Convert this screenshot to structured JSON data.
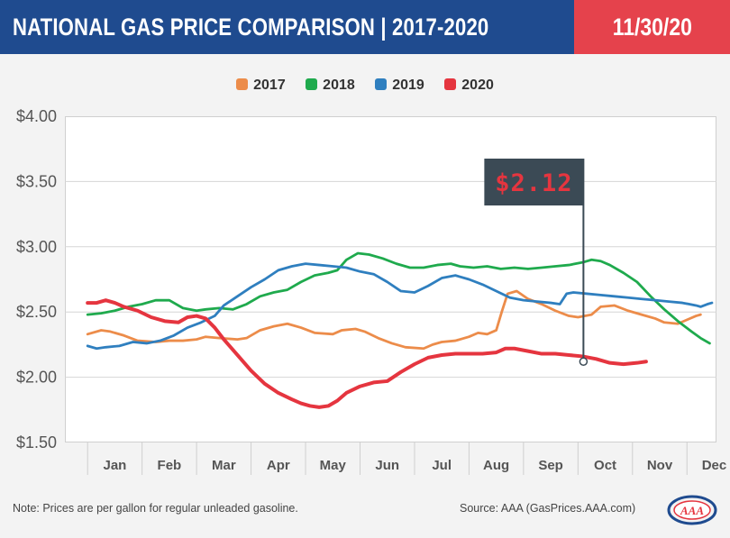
{
  "header": {
    "title": "NATIONAL GAS PRICE COMPARISON | 2017-2020",
    "date": "11/30/20"
  },
  "colors": {
    "header_bg": "#1f4b8f",
    "date_bg": "#e5424c",
    "2017": "#ec8c4a",
    "2018": "#1faa4d",
    "2019": "#2f7fbf",
    "2020": "#e5353f",
    "marker_bg": "#3b4a55",
    "marker_text": "#e5353f"
  },
  "footer": {
    "note": "Note: Prices are per gallon for regular unleaded gasoline.",
    "source": "Source: AAA (GasPrices.AAA.com)",
    "logo_text": "AAA"
  },
  "chart_data": {
    "type": "line",
    "categories": [
      "Jan",
      "Feb",
      "Mar",
      "Apr",
      "May",
      "Jun",
      "Jul",
      "Aug",
      "Sep",
      "Oct",
      "Nov",
      "Dec"
    ],
    "x_unit": "month (fractional)",
    "ylim": [
      1.5,
      4.0
    ],
    "yticks": [
      {
        "value": 4.0,
        "label": "$4.00"
      },
      {
        "value": 3.5,
        "label": "$3.50"
      },
      {
        "value": 3.0,
        "label": "$3.00"
      },
      {
        "value": 2.5,
        "label": "$2.50"
      },
      {
        "value": 2.0,
        "label": "$2.00"
      },
      {
        "value": 1.5,
        "label": "$1.50"
      }
    ],
    "grid": "horizontal",
    "legend_position": "top-center",
    "annotation": {
      "label": "$2.12",
      "x": 11.42,
      "y": 2.12,
      "series": "2020"
    },
    "series": [
      {
        "name": "2017",
        "color": "#ec8c4a",
        "points": [
          [
            0.5,
            2.33
          ],
          [
            0.8,
            2.36
          ],
          [
            1.0,
            2.35
          ],
          [
            1.3,
            2.32
          ],
          [
            1.6,
            2.28
          ],
          [
            2.0,
            2.27
          ],
          [
            2.3,
            2.28
          ],
          [
            2.6,
            2.28
          ],
          [
            2.9,
            2.29
          ],
          [
            3.1,
            2.31
          ],
          [
            3.4,
            2.3
          ],
          [
            3.8,
            2.29
          ],
          [
            4.0,
            2.3
          ],
          [
            4.3,
            2.36
          ],
          [
            4.6,
            2.39
          ],
          [
            4.9,
            2.41
          ],
          [
            5.2,
            2.38
          ],
          [
            5.5,
            2.34
          ],
          [
            5.9,
            2.33
          ],
          [
            6.1,
            2.36
          ],
          [
            6.4,
            2.37
          ],
          [
            6.6,
            2.35
          ],
          [
            6.9,
            2.3
          ],
          [
            7.2,
            2.26
          ],
          [
            7.5,
            2.23
          ],
          [
            7.9,
            2.22
          ],
          [
            8.1,
            2.25
          ],
          [
            8.3,
            2.27
          ],
          [
            8.6,
            2.28
          ],
          [
            8.9,
            2.31
          ],
          [
            9.1,
            2.34
          ],
          [
            9.3,
            2.33
          ],
          [
            9.5,
            2.36
          ],
          [
            9.62,
            2.5
          ],
          [
            9.75,
            2.64
          ],
          [
            9.95,
            2.66
          ],
          [
            10.2,
            2.6
          ],
          [
            10.5,
            2.56
          ],
          [
            10.8,
            2.51
          ],
          [
            11.1,
            2.47
          ],
          [
            11.3,
            2.46
          ],
          [
            11.6,
            2.48
          ],
          [
            11.8,
            2.54
          ],
          [
            12.1,
            2.55
          ],
          [
            12.4,
            2.51
          ],
          [
            12.7,
            2.48
          ],
          [
            13.0,
            2.45
          ],
          [
            13.2,
            2.42
          ],
          [
            13.5,
            2.41
          ],
          [
            13.7,
            2.44
          ],
          [
            13.9,
            2.47
          ],
          [
            14.0,
            2.48
          ]
        ]
      },
      {
        "name": "2018",
        "color": "#1faa4d",
        "points": [
          [
            0.5,
            2.48
          ],
          [
            0.8,
            2.49
          ],
          [
            1.1,
            2.51
          ],
          [
            1.4,
            2.54
          ],
          [
            1.7,
            2.56
          ],
          [
            2.0,
            2.59
          ],
          [
            2.3,
            2.59
          ],
          [
            2.6,
            2.53
          ],
          [
            2.9,
            2.51
          ],
          [
            3.1,
            2.52
          ],
          [
            3.4,
            2.53
          ],
          [
            3.7,
            2.52
          ],
          [
            4.0,
            2.56
          ],
          [
            4.3,
            2.62
          ],
          [
            4.6,
            2.65
          ],
          [
            4.9,
            2.67
          ],
          [
            5.2,
            2.73
          ],
          [
            5.5,
            2.78
          ],
          [
            5.8,
            2.8
          ],
          [
            6.0,
            2.82
          ],
          [
            6.2,
            2.9
          ],
          [
            6.45,
            2.95
          ],
          [
            6.7,
            2.94
          ],
          [
            7.0,
            2.91
          ],
          [
            7.3,
            2.87
          ],
          [
            7.6,
            2.84
          ],
          [
            7.9,
            2.84
          ],
          [
            8.2,
            2.86
          ],
          [
            8.5,
            2.87
          ],
          [
            8.7,
            2.85
          ],
          [
            9.0,
            2.84
          ],
          [
            9.3,
            2.85
          ],
          [
            9.6,
            2.83
          ],
          [
            9.9,
            2.84
          ],
          [
            10.2,
            2.83
          ],
          [
            10.5,
            2.84
          ],
          [
            10.8,
            2.85
          ],
          [
            11.1,
            2.86
          ],
          [
            11.4,
            2.88
          ],
          [
            11.6,
            2.9
          ],
          [
            11.8,
            2.89
          ],
          [
            12.0,
            2.86
          ],
          [
            12.3,
            2.8
          ],
          [
            12.6,
            2.73
          ],
          [
            12.9,
            2.62
          ],
          [
            13.2,
            2.52
          ],
          [
            13.5,
            2.43
          ],
          [
            13.8,
            2.35
          ],
          [
            14.0,
            2.3
          ],
          [
            14.2,
            2.26
          ]
        ]
      },
      {
        "name": "2019",
        "color": "#2f7fbf",
        "points": [
          [
            0.5,
            2.24
          ],
          [
            0.7,
            2.22
          ],
          [
            0.9,
            2.23
          ],
          [
            1.2,
            2.24
          ],
          [
            1.5,
            2.27
          ],
          [
            1.8,
            2.26
          ],
          [
            2.1,
            2.28
          ],
          [
            2.4,
            2.32
          ],
          [
            2.7,
            2.38
          ],
          [
            3.0,
            2.42
          ],
          [
            3.3,
            2.47
          ],
          [
            3.5,
            2.55
          ],
          [
            3.8,
            2.62
          ],
          [
            4.1,
            2.69
          ],
          [
            4.4,
            2.75
          ],
          [
            4.7,
            2.82
          ],
          [
            5.0,
            2.85
          ],
          [
            5.3,
            2.87
          ],
          [
            5.6,
            2.86
          ],
          [
            5.9,
            2.85
          ],
          [
            6.2,
            2.84
          ],
          [
            6.5,
            2.81
          ],
          [
            6.8,
            2.79
          ],
          [
            7.1,
            2.73
          ],
          [
            7.4,
            2.66
          ],
          [
            7.7,
            2.65
          ],
          [
            8.0,
            2.7
          ],
          [
            8.3,
            2.76
          ],
          [
            8.6,
            2.78
          ],
          [
            8.9,
            2.75
          ],
          [
            9.2,
            2.71
          ],
          [
            9.5,
            2.66
          ],
          [
            9.8,
            2.61
          ],
          [
            10.1,
            2.59
          ],
          [
            10.4,
            2.58
          ],
          [
            10.7,
            2.57
          ],
          [
            10.9,
            2.56
          ],
          [
            11.05,
            2.64
          ],
          [
            11.2,
            2.65
          ],
          [
            11.5,
            2.64
          ],
          [
            11.8,
            2.63
          ],
          [
            12.1,
            2.62
          ],
          [
            12.4,
            2.61
          ],
          [
            12.7,
            2.6
          ],
          [
            13.0,
            2.59
          ],
          [
            13.3,
            2.58
          ],
          [
            13.6,
            2.57
          ],
          [
            13.9,
            2.55
          ],
          [
            14.0,
            2.54
          ],
          [
            14.15,
            2.56
          ],
          [
            14.25,
            2.57
          ]
        ]
      },
      {
        "name": "2020",
        "color": "#e5353f",
        "points": [
          [
            0.5,
            2.57
          ],
          [
            0.7,
            2.57
          ],
          [
            0.9,
            2.59
          ],
          [
            1.1,
            2.57
          ],
          [
            1.3,
            2.54
          ],
          [
            1.6,
            2.51
          ],
          [
            1.9,
            2.46
          ],
          [
            2.2,
            2.43
          ],
          [
            2.5,
            2.42
          ],
          [
            2.7,
            2.46
          ],
          [
            2.9,
            2.47
          ],
          [
            3.1,
            2.45
          ],
          [
            3.3,
            2.38
          ],
          [
            3.5,
            2.29
          ],
          [
            3.8,
            2.17
          ],
          [
            4.1,
            2.05
          ],
          [
            4.4,
            1.95
          ],
          [
            4.7,
            1.88
          ],
          [
            5.0,
            1.83
          ],
          [
            5.2,
            1.8
          ],
          [
            5.4,
            1.78
          ],
          [
            5.6,
            1.77
          ],
          [
            5.8,
            1.78
          ],
          [
            6.0,
            1.82
          ],
          [
            6.2,
            1.88
          ],
          [
            6.5,
            1.93
          ],
          [
            6.8,
            1.96
          ],
          [
            7.1,
            1.97
          ],
          [
            7.4,
            2.04
          ],
          [
            7.7,
            2.1
          ],
          [
            8.0,
            2.15
          ],
          [
            8.3,
            2.17
          ],
          [
            8.6,
            2.18
          ],
          [
            8.9,
            2.18
          ],
          [
            9.2,
            2.18
          ],
          [
            9.5,
            2.19
          ],
          [
            9.7,
            2.22
          ],
          [
            9.9,
            2.22
          ],
          [
            10.2,
            2.2
          ],
          [
            10.5,
            2.18
          ],
          [
            10.8,
            2.18
          ],
          [
            11.1,
            2.17
          ],
          [
            11.4,
            2.16
          ],
          [
            11.7,
            2.14
          ],
          [
            12.0,
            2.11
          ],
          [
            12.3,
            2.1
          ],
          [
            12.6,
            2.11
          ],
          [
            12.8,
            2.12
          ]
        ]
      }
    ]
  }
}
